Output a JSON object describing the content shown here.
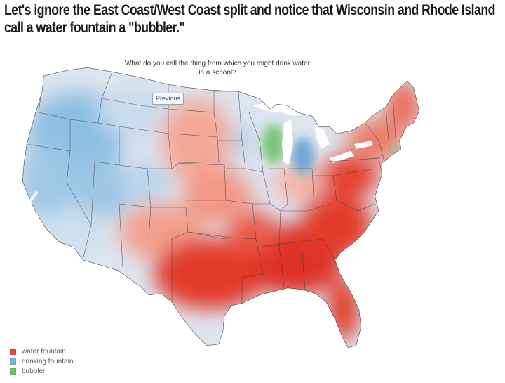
{
  "headline": "Let's ignore the East Coast/West Coast split and notice that Wisconsin and Rhode Island call a water fountain a \"bubbler.\"",
  "question": {
    "line1": "What do you call the thing from which you might drink water",
    "line2": "in a school?"
  },
  "previous_label": "Previous",
  "legend": {
    "items": [
      {
        "label": "water fountain",
        "color": "#e8483a"
      },
      {
        "label": "drinking fountain",
        "color": "#7fb3d8"
      },
      {
        "label": "bubbler",
        "color": "#6cc46a"
      }
    ]
  },
  "colors": {
    "water_fountain_strong": "#e33a2c",
    "water_fountain_light": "#f3a08f",
    "drinking_fountain": "#8cbfe2",
    "drinking_fountain_light": "#cfe0ee",
    "bubbler": "#78c878"
  }
}
